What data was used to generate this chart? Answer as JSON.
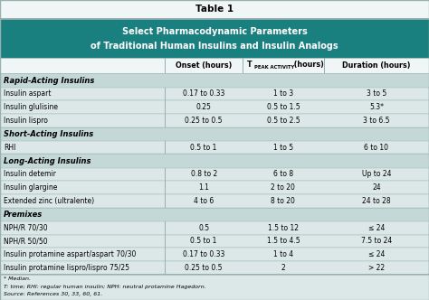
{
  "title_line1": "Table 1",
  "header_line1": "Select Pharmacodynamic Parameters",
  "header_line2": "of Traditional Human Insulins and Insulin Analogs",
  "sections": [
    {
      "section_name": "Rapid-Acting Insulins",
      "rows": [
        [
          "Insulin aspart",
          "0.17 to 0.33",
          "1 to 3",
          "3 to 5"
        ],
        [
          "Insulin glulisine",
          "0.25",
          "0.5 to 1.5",
          "5.3*"
        ],
        [
          "Insulin lispro",
          "0.25 to 0.5",
          "0.5 to 2.5",
          "3 to 6.5"
        ]
      ]
    },
    {
      "section_name": "Short-Acting Insulins",
      "rows": [
        [
          "RHI",
          "0.5 to 1",
          "1 to 5",
          "6 to 10"
        ]
      ]
    },
    {
      "section_name": "Long-Acting Insulins",
      "rows": [
        [
          "Insulin detemir",
          "0.8 to 2",
          "6 to 8",
          "Up to 24"
        ],
        [
          "Insulin glargine",
          "1.1",
          "2 to 20",
          "24"
        ],
        [
          "Extended zinc (ultralente)",
          "4 to 6",
          "8 to 20",
          "24 to 28"
        ]
      ]
    },
    {
      "section_name": "Premixes",
      "rows": [
        [
          "NPH/R 70/30",
          "0.5",
          "1.5 to 12",
          "≤ 24"
        ],
        [
          "NPH/R 50/50",
          "0.5 to 1",
          "1.5 to 4.5",
          "7.5 to 24"
        ],
        [
          "Insulin protamine aspart/aspart 70/30",
          "0.17 to 0.33",
          "1 to 4",
          "≤ 24"
        ],
        [
          "Insulin protamine lispro/lispro 75/25",
          "0.25 to 0.5",
          "2",
          "> 22"
        ]
      ]
    }
  ],
  "footnotes": [
    "* Median.",
    "T: time; RHI: regular human insulin; NPH: neutral protamine Hagedorn.",
    "Source: References 30, 33, 60, 61."
  ],
  "header_bg": "#1a7f7f",
  "header_text_color": "#ffffff",
  "section_bg": "#c5d8d8",
  "data_bg": "#dce8e8",
  "border_color": "#9ab0b0",
  "title_bg": "#f0f5f5",
  "outer_bg": "#dce8e8",
  "footnote_bg": "#dce8e8"
}
